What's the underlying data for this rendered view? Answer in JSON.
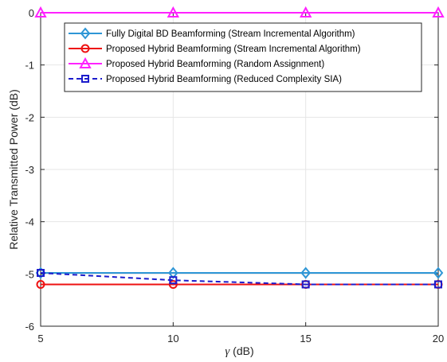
{
  "chart_data": {
    "type": "line",
    "xlabel_symbol": "γ",
    "xlabel_unit": " (dB)",
    "ylabel": "Relative Transmitted Power (dB)",
    "x": [
      5,
      10,
      15,
      20
    ],
    "xlim": [
      5,
      20
    ],
    "ylim": [
      -6,
      0
    ],
    "xticks": [
      "5",
      "10",
      "15",
      "20"
    ],
    "yticks": [
      "0",
      "-1",
      "-2",
      "-3",
      "-4",
      "-5",
      "-6"
    ],
    "grid": true,
    "legend_position": "top-right",
    "series": [
      {
        "name": "Fully Digital BD Beamforming (Stream Incremental Algorithm)",
        "values": [
          -4.98,
          -4.98,
          -4.98,
          -4.98
        ],
        "color": "#2e96d6",
        "marker": "diamond",
        "dash": "solid"
      },
      {
        "name": "Proposed Hybrid Beamforming (Stream Incremental Algorithm)",
        "values": [
          -5.2,
          -5.2,
          -5.2,
          -5.2
        ],
        "color": "#ee1111",
        "marker": "circle",
        "dash": "solid"
      },
      {
        "name": "Proposed Hybrid Beamforming (Random Assignment)",
        "values": [
          0,
          0,
          0,
          0
        ],
        "color": "#ff22ff",
        "marker": "triangle",
        "dash": "solid"
      },
      {
        "name": "Proposed Hybrid Beamforming (Reduced Complexity SIA)",
        "values": [
          -4.98,
          -5.12,
          -5.2,
          -5.2
        ],
        "color": "#1c1ccc",
        "marker": "square",
        "dash": "dashed"
      }
    ]
  }
}
